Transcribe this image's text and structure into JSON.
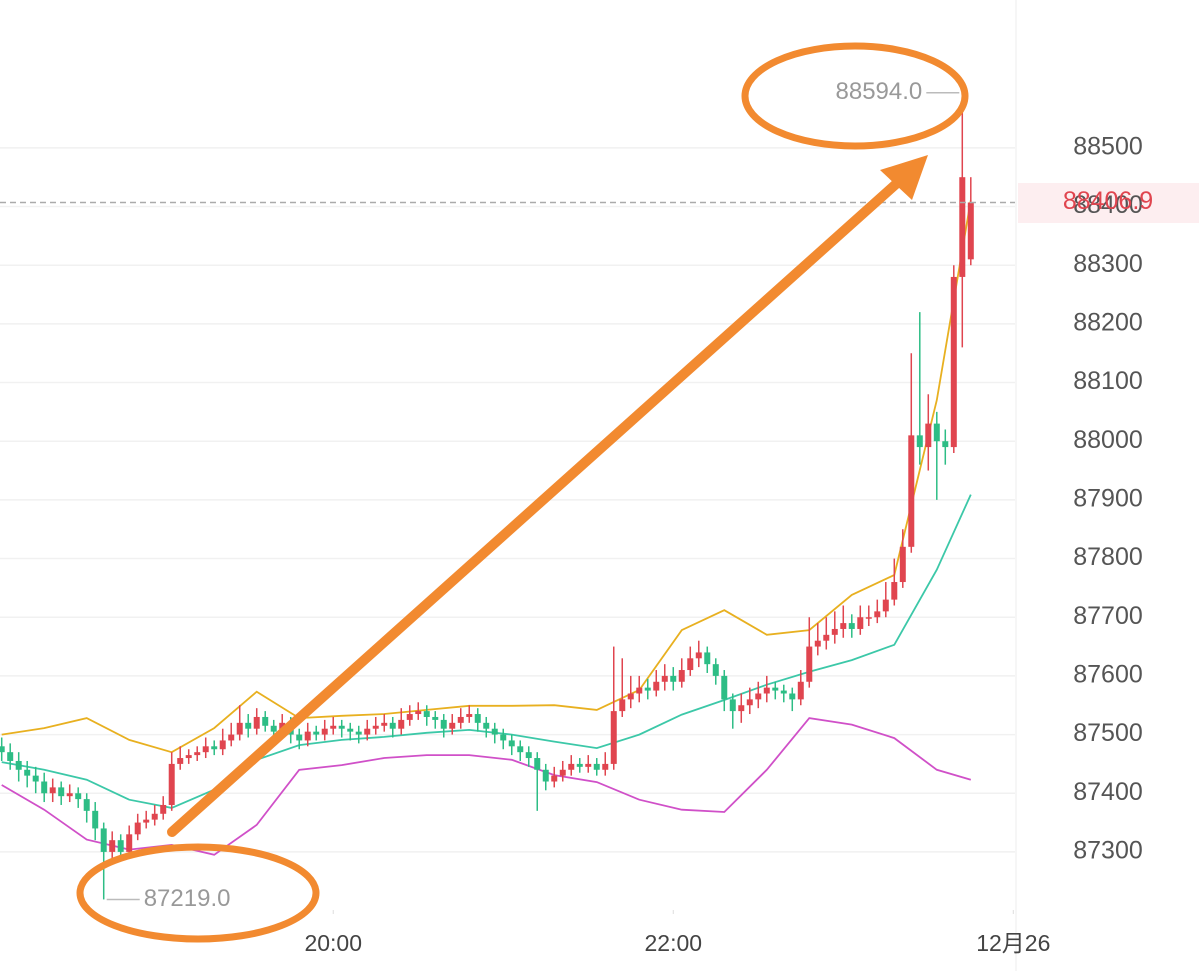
{
  "chart_data": {
    "type": "candlestick",
    "xlim": [
      -0.2,
      119.2
    ],
    "xticks": [
      {
        "value": 39,
        "label": "20:00"
      },
      {
        "value": 79,
        "label": "22:00"
      },
      {
        "value": 119,
        "label": "12月26"
      }
    ],
    "ylim": [
      87201,
      88752
    ],
    "yticks": [
      87300,
      87400,
      87500,
      87600,
      87700,
      87800,
      87900,
      88000,
      88100,
      88200,
      88300,
      88400,
      88500
    ],
    "grid": true,
    "up_color": "#e0454f",
    "down_color": "#2dbd85",
    "open": [
      87480,
      87470,
      87455,
      87440,
      87430,
      87420,
      87400,
      87410,
      87395,
      87400,
      87390,
      87370,
      87340,
      87300,
      87320,
      87300,
      87330,
      87350,
      87355,
      87365,
      87380,
      87450,
      87460,
      87465,
      87470,
      87480,
      87475,
      87490,
      87500,
      87520,
      87510,
      87530,
      87515,
      87505,
      87520,
      87500,
      87490,
      87505,
      87500,
      87510,
      87515,
      87510,
      87505,
      87500,
      87510,
      87515,
      87520,
      87510,
      87525,
      87535,
      87540,
      87530,
      87525,
      87510,
      87520,
      87530,
      87535,
      87520,
      87510,
      87500,
      87490,
      87480,
      87470,
      87460,
      87440,
      87420,
      87430,
      87440,
      87450,
      87445,
      87450,
      87440,
      87450,
      87540,
      87560,
      87570,
      87580,
      87575,
      87590,
      87600,
      87590,
      87610,
      87630,
      87640,
      87620,
      87600,
      87560,
      87540,
      87550,
      87560,
      87570,
      87580,
      87575,
      87570,
      87560,
      87590,
      87650,
      87660,
      87670,
      87680,
      87690,
      87680,
      87700,
      87700,
      87710,
      87730,
      87760,
      87820,
      88010,
      87990,
      88030,
      88000,
      87990,
      88280,
      88310
    ],
    "high": [
      87495,
      87485,
      87470,
      87455,
      87445,
      87435,
      87425,
      87420,
      87415,
      87410,
      87400,
      87385,
      87350,
      87335,
      87330,
      87345,
      87365,
      87370,
      87380,
      87395,
      87470,
      87480,
      87475,
      87480,
      87495,
      87490,
      87510,
      87520,
      87550,
      87535,
      87545,
      87540,
      87525,
      87535,
      87530,
      87510,
      87520,
      87515,
      87525,
      87530,
      87525,
      87520,
      87515,
      87525,
      87530,
      87535,
      87530,
      87545,
      87550,
      87555,
      87550,
      87540,
      87535,
      87535,
      87545,
      87550,
      87545,
      87530,
      87520,
      87510,
      87500,
      87490,
      87480,
      87470,
      87450,
      87445,
      87455,
      87465,
      87460,
      87465,
      87460,
      87470,
      87650,
      87630,
      87600,
      87600,
      87595,
      87610,
      87620,
      87615,
      87630,
      87650,
      87660,
      87650,
      87630,
      87610,
      87570,
      87570,
      87580,
      87590,
      87600,
      87590,
      87585,
      87580,
      87610,
      87700,
      87690,
      87700,
      87710,
      87720,
      87705,
      87720,
      87720,
      87730,
      87760,
      87800,
      87850,
      88150,
      88220,
      88080,
      88050,
      88020,
      88300,
      88594,
      88450
    ],
    "low": [
      87455,
      87440,
      87420,
      87410,
      87400,
      87385,
      87385,
      87380,
      87385,
      87375,
      87350,
      87320,
      87219,
      87280,
      87285,
      87290,
      87320,
      87340,
      87345,
      87355,
      87370,
      87440,
      87450,
      87455,
      87460,
      87465,
      87465,
      87480,
      87490,
      87495,
      87500,
      87505,
      87490,
      87495,
      87485,
      87475,
      87480,
      87490,
      87490,
      87500,
      87495,
      87490,
      87485,
      87490,
      87500,
      87505,
      87495,
      87500,
      87515,
      87525,
      87515,
      87510,
      87495,
      87500,
      87510,
      87520,
      87505,
      87495,
      87485,
      87475,
      87465,
      87455,
      87445,
      87370,
      87405,
      87410,
      87420,
      87430,
      87435,
      87435,
      87430,
      87430,
      87440,
      87530,
      87545,
      87555,
      87560,
      87565,
      87575,
      87575,
      87580,
      87600,
      87615,
      87605,
      87585,
      87540,
      87510,
      87520,
      87535,
      87545,
      87555,
      87560,
      87555,
      87540,
      87550,
      87580,
      87635,
      87645,
      87655,
      87665,
      87665,
      87670,
      87685,
      87690,
      87700,
      87720,
      87750,
      87810,
      87960,
      87950,
      87900,
      87960,
      87980,
      88160,
      88300
    ],
    "close": [
      87470,
      87455,
      87440,
      87430,
      87420,
      87400,
      87410,
      87395,
      87400,
      87390,
      87370,
      87340,
      87300,
      87320,
      87300,
      87330,
      87350,
      87355,
      87365,
      87380,
      87450,
      87460,
      87465,
      87470,
      87480,
      87475,
      87490,
      87500,
      87520,
      87510,
      87530,
      87515,
      87505,
      87520,
      87500,
      87490,
      87505,
      87500,
      87510,
      87515,
      87510,
      87505,
      87500,
      87510,
      87515,
      87520,
      87510,
      87525,
      87535,
      87540,
      87530,
      87525,
      87510,
      87520,
      87530,
      87535,
      87520,
      87510,
      87500,
      87490,
      87480,
      87470,
      87460,
      87440,
      87420,
      87430,
      87440,
      87450,
      87445,
      87450,
      87440,
      87450,
      87540,
      87560,
      87570,
      87580,
      87575,
      87590,
      87600,
      87590,
      87610,
      87630,
      87640,
      87620,
      87600,
      87560,
      87540,
      87550,
      87560,
      87570,
      87580,
      87575,
      87570,
      87560,
      87590,
      87650,
      87660,
      87670,
      87680,
      87690,
      87680,
      87700,
      87700,
      87710,
      87730,
      87760,
      87820,
      88010,
      87990,
      88030,
      88000,
      87990,
      88280,
      88450,
      88406.9
    ],
    "bands": [
      {
        "color": "#e8b020",
        "x": [
          0,
          5,
          10,
          15,
          20,
          25,
          30,
          35,
          40,
          45,
          50,
          55,
          60,
          65,
          70,
          75,
          80,
          85,
          90,
          95,
          100,
          105,
          110,
          114
        ],
        "values": [
          87500,
          87511,
          87528,
          87491,
          87470,
          87511,
          87573,
          87528,
          87532,
          87535,
          87542,
          87549,
          87549,
          87550,
          87542,
          87576,
          87678,
          87712,
          87670,
          87678,
          87738,
          87772,
          88070,
          88411
        ]
      },
      {
        "color": "#3cc8a8",
        "x": [
          0,
          5,
          10,
          15,
          20,
          25,
          30,
          35,
          40,
          45,
          50,
          55,
          60,
          65,
          70,
          75,
          80,
          85,
          90,
          95,
          100,
          105,
          110,
          114
        ],
        "values": [
          87453,
          87440,
          87423,
          87389,
          87375,
          87406,
          87457,
          87482,
          87491,
          87496,
          87503,
          87508,
          87500,
          87488,
          87477,
          87500,
          87534,
          87559,
          87585,
          87607,
          87627,
          87653,
          87781,
          87909
        ]
      },
      {
        "color": "#d050c8",
        "x": [
          0,
          5,
          10,
          15,
          20,
          25,
          30,
          35,
          40,
          45,
          50,
          55,
          60,
          65,
          70,
          75,
          80,
          85,
          90,
          95,
          100,
          105,
          110,
          114
        ],
        "values": [
          87414,
          87372,
          87321,
          87304,
          87312,
          87295,
          87346,
          87440,
          87448,
          87460,
          87465,
          87465,
          87457,
          87431,
          87419,
          87389,
          87372,
          87368,
          87440,
          87528,
          87517,
          87494,
          87440,
          87423
        ]
      }
    ],
    "last_price": 88406.9,
    "high_marker": {
      "value": 88594,
      "label": "88594.0"
    },
    "low_marker": {
      "value": 87219,
      "label": "87219.0"
    }
  }
}
